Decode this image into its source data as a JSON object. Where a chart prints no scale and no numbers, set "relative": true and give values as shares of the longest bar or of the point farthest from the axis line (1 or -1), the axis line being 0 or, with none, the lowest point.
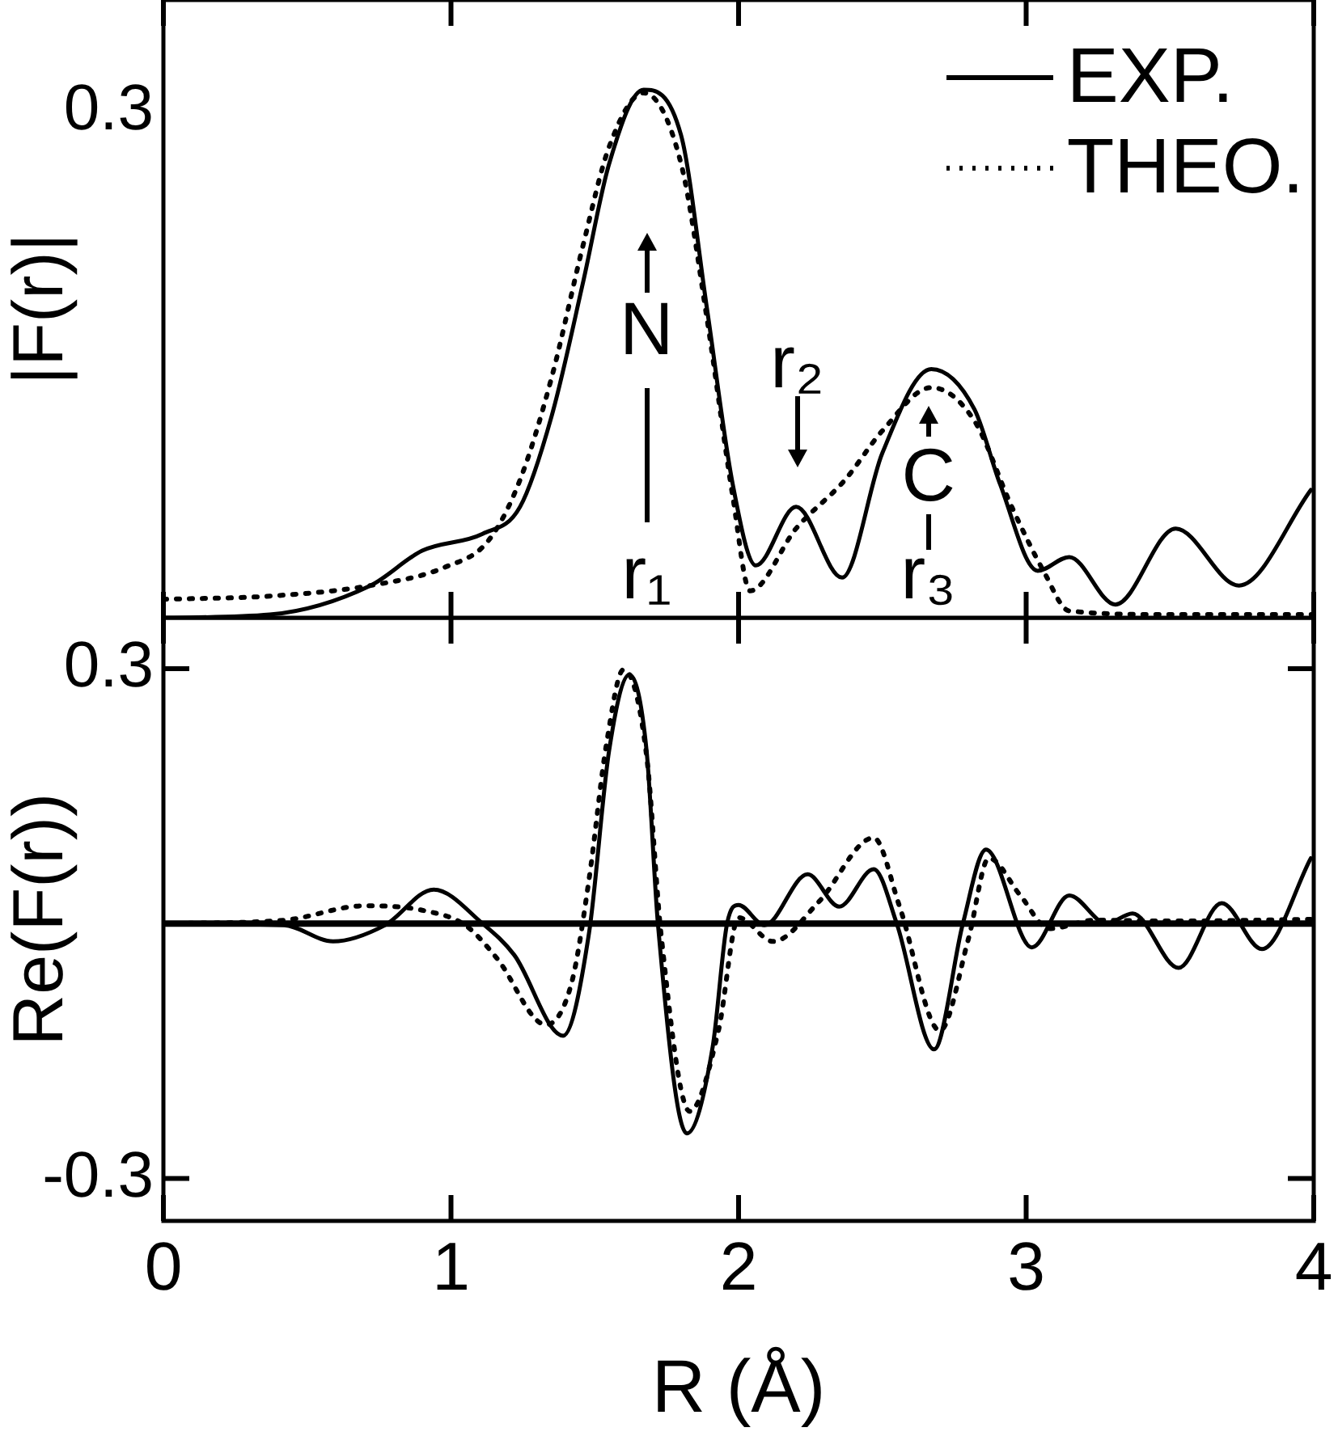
{
  "chart_data": [
    {
      "type": "line",
      "relative": true,
      "ylabel": "|F(r)|",
      "xlim": [
        0,
        4
      ],
      "xticks": [
        0,
        1,
        2,
        3,
        4
      ],
      "tick_labels": "y",
      "legend": "top right",
      "marker": "none",
      "series": [
        {
          "name": "EXP.",
          "color": "#000000",
          "line_style": "solid",
          "x": [
            0,
            0.37,
            0.72,
            0.9,
            1.11,
            1.24,
            1.35,
            1.46,
            1.55,
            1.67,
            1.8,
            1.89,
            1.98,
            2.06,
            2.2,
            2.36,
            2.5,
            2.67,
            2.82,
            2.91,
            3.04,
            3.15,
            3.31,
            3.52,
            3.74,
            3.99
          ],
          "values": [
            0,
            0.006,
            0.061,
            0.127,
            0.159,
            0.21,
            0.382,
            0.637,
            0.86,
            1,
            0.914,
            0.586,
            0.252,
            0.099,
            0.21,
            0.076,
            0.312,
            0.471,
            0.395,
            0.252,
            0.089,
            0.115,
            0.025,
            0.169,
            0.061,
            0.242
          ]
        },
        {
          "name": "THEO.",
          "color": "#000000",
          "line_style": "dotted",
          "x": [
            0,
            0.37,
            0.72,
            0.98,
            1.13,
            1.24,
            1.35,
            1.46,
            1.55,
            1.67,
            1.8,
            1.89,
            1.98,
            2.04,
            2.2,
            2.37,
            2.5,
            2.67,
            2.82,
            2.95,
            3.06,
            3.15,
            3.5,
            4.0
          ],
          "values": [
            0.035,
            0.041,
            0.061,
            0.096,
            0.146,
            0.261,
            0.455,
            0.707,
            0.892,
            0.994,
            0.86,
            0.567,
            0.229,
            0.051,
            0.169,
            0.261,
            0.354,
            0.436,
            0.373,
            0.21,
            0.089,
            0.013,
            0.006,
            0.006
          ]
        }
      ],
      "annotations": [
        "0.3",
        "N",
        "r₁",
        "r₂",
        "C",
        "r₃"
      ]
    },
    {
      "type": "line",
      "xlabel": "R (Å)",
      "ylabel": "Re(F(r))",
      "xlim": [
        0,
        4
      ],
      "xticks": [
        0,
        1,
        2,
        3,
        4
      ],
      "ylim": [
        -0.35,
        0.36
      ],
      "yticks": [
        0.3,
        -0.3
      ],
      "marker": "none",
      "ref_lines": [
        {
          "axis": "y",
          "value": 0,
          "color": "#000000"
        }
      ],
      "series": [
        {
          "color": "#000000",
          "line_style": "solid",
          "x": [
            0,
            0.42,
            0.59,
            0.77,
            0.94,
            1.11,
            1.22,
            1.39,
            1.48,
            1.55,
            1.62,
            1.68,
            1.72,
            1.82,
            1.91,
            1.96,
            2.0,
            2.09,
            2.24,
            2.35,
            2.47,
            2.55,
            2.68,
            2.78,
            2.86,
            3.02,
            3.15,
            3.28,
            3.37,
            3.53,
            3.68,
            3.82,
            3.99
          ],
          "values": [
            0,
            -0.002,
            -0.021,
            -0.002,
            0.04,
            0,
            -0.037,
            -0.132,
            -0.011,
            0.204,
            0.293,
            0.204,
            -0.002,
            -0.247,
            -0.145,
            0,
            0.022,
            -0.002,
            0.058,
            0.02,
            0.064,
            0,
            -0.148,
            0,
            0.087,
            -0.028,
            0.033,
            0,
            0.012,
            -0.052,
            0.024,
            -0.03,
            0.077
          ]
        },
        {
          "color": "#000000",
          "line_style": "dotted",
          "x": [
            0,
            0.42,
            0.7,
            0.91,
            1.05,
            1.16,
            1.33,
            1.42,
            1.48,
            1.54,
            1.6,
            1.68,
            1.73,
            1.83,
            1.93,
            2.0,
            2.12,
            2.28,
            2.47,
            2.56,
            2.7,
            2.8,
            2.87,
            2.98,
            3.08,
            3.24,
            3.5,
            4.0
          ],
          "values": [
            0,
            0.004,
            0.021,
            0.015,
            -0.002,
            -0.041,
            -0.119,
            -0.069,
            0.052,
            0.21,
            0.299,
            0.198,
            -0.011,
            -0.221,
            -0.126,
            0.007,
            -0.021,
            0.026,
            0.101,
            0.02,
            -0.126,
            -0.017,
            0.077,
            0.033,
            -0.006,
            0.004,
            0.003,
            0.005
          ]
        }
      ]
    }
  ]
}
